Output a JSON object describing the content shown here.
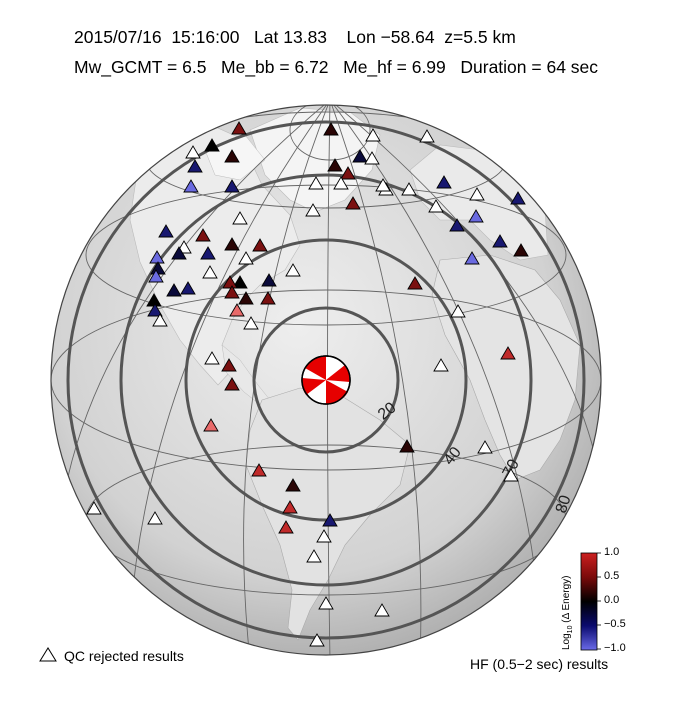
{
  "header": {
    "date": "2015/07/16",
    "time": "15:16:00",
    "lat": "Lat 13.83",
    "lon": "Lon −58.64",
    "depth": "z=5.5 km",
    "mw": "Mw_GCMT = 6.5",
    "me_bb": "Me_bb = 6.72",
    "me_hf": "Me_hf = 6.99",
    "duration": "Duration = 64 sec"
  },
  "rings": {
    "labels": [
      "20",
      "40",
      "70",
      "80"
    ]
  },
  "colorbar": {
    "title_log": "Log",
    "title_sub": "10",
    "title_rest": " (Δ Energy)",
    "ticks": [
      "1.0",
      "0.5",
      "0.0",
      "−0.5",
      "−1.0"
    ],
    "colors": [
      "#cc2020",
      "#7a0a0a",
      "#000000",
      "#0a0a6e",
      "#5a5ad8"
    ]
  },
  "legend": {
    "qc_label": "QC rejected results",
    "hf_label": "HF (0.5−2 sec) results"
  },
  "beachball": {
    "colors": [
      "#e60000",
      "#ffffff"
    ]
  },
  "stations": {
    "rejected": "#ffffff",
    "palette": [
      "#c02a2a",
      "#7a1010",
      "#2a0505",
      "#000000",
      "#0a0a3a",
      "#181870",
      "#6a6ae0",
      "#e86a6a"
    ]
  }
}
